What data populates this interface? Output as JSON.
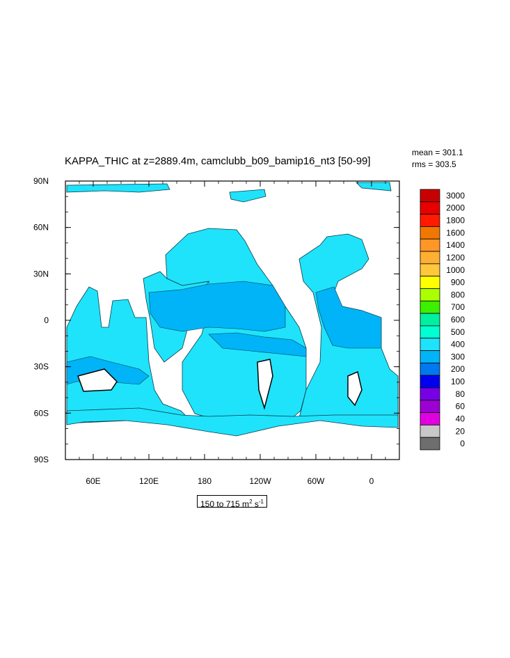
{
  "title": "KAPPA_THIC at z=2889.4m, camclubb_b09_bamip16_nt3 [50-99]",
  "stats": {
    "mean": "mean = 301.1",
    "rms": "rms = 303.5"
  },
  "range": {
    "prefix": "150 to 715 m",
    "sup1": "2",
    "mid": " s",
    "sup2": "-1"
  },
  "map": {
    "lon_labels": [
      "60E",
      "120E",
      "180",
      "120W",
      "60W",
      "0"
    ],
    "lat_labels": [
      "90N",
      "60N",
      "30N",
      "0",
      "30S",
      "60S",
      "90S"
    ],
    "ocean_color": "#1ee3fb",
    "band_color": "#00b4f7",
    "land_color": "#ffffff"
  },
  "colorbar": {
    "levels": [
      "3000",
      "2000",
      "1800",
      "1600",
      "1400",
      "1200",
      "1000",
      "900",
      "800",
      "700",
      "600",
      "500",
      "400",
      "300",
      "200",
      "100",
      "80",
      "60",
      "40",
      "20",
      "0"
    ],
    "colors": [
      "#c80000",
      "#e80000",
      "#ff1a00",
      "#f07800",
      "#ff9628",
      "#ffaf32",
      "#ffc83c",
      "#ffff00",
      "#aaff00",
      "#3cf000",
      "#00f0a0",
      "#00ffd2",
      "#1ee3fb",
      "#00b4f7",
      "#0078f0",
      "#0000f0",
      "#7800e6",
      "#9c00d2",
      "#e100e1",
      "#c8c8c8",
      "#6e6e6e"
    ]
  }
}
